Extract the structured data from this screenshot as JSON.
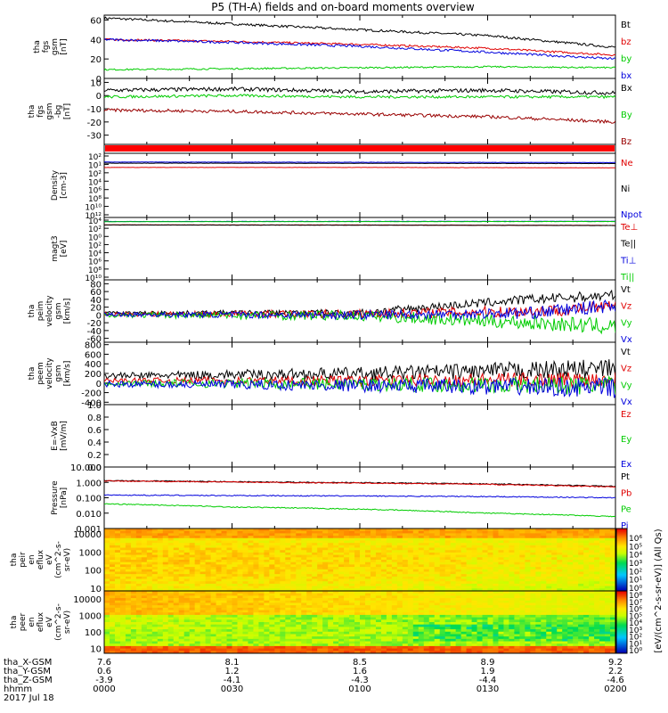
{
  "title": "P5 (TH-A) fields and on-board moments overview",
  "colors": {
    "black": "#000000",
    "red": "#e00000",
    "green": "#00cc00",
    "blue": "#0000dd",
    "darkred": "#990000"
  },
  "chart_data": [
    {
      "type": "line",
      "ylabel_lines": [
        "tha",
        "fgs",
        "gsm",
        "[nT]"
      ],
      "ylim": [
        0,
        65
      ],
      "yticks": [
        0,
        20,
        40,
        60
      ],
      "series": [
        {
          "name": "Bt",
          "color": "black",
          "x": [
            0,
            30,
            60,
            90,
            120
          ],
          "y": [
            62,
            56,
            50,
            44,
            32
          ]
        },
        {
          "name": "bz",
          "color": "red",
          "x": [
            0,
            30,
            60,
            90,
            120
          ],
          "y": [
            40,
            38,
            35,
            31,
            24
          ]
        },
        {
          "name": "by",
          "color": "green",
          "x": [
            0,
            30,
            60,
            90,
            120
          ],
          "y": [
            9,
            10,
            11,
            12,
            11
          ]
        },
        {
          "name": "bx",
          "color": "blue",
          "x": [
            0,
            30,
            60,
            90,
            120
          ],
          "y": [
            40,
            37,
            33,
            27,
            20
          ]
        }
      ]
    },
    {
      "type": "line",
      "ylabel_lines": [
        "tha",
        "fgs",
        "gsm",
        "-bg",
        "[nT]"
      ],
      "ylim": [
        -37,
        13
      ],
      "yticks": [
        10,
        0,
        -10,
        -20,
        -30
      ],
      "series": [
        {
          "name": "Bx",
          "color": "black",
          "x": [
            0,
            30,
            60,
            90,
            120
          ],
          "y": [
            4,
            5,
            3,
            4,
            2
          ]
        },
        {
          "name": "By",
          "color": "green",
          "x": [
            0,
            30,
            60,
            90,
            120
          ],
          "y": [
            -1,
            0,
            -1,
            -1,
            -1
          ]
        },
        {
          "name": "Bz",
          "color": "darkred",
          "x": [
            0,
            30,
            60,
            90,
            120
          ],
          "y": [
            -11,
            -12,
            -14,
            -16,
            -20
          ]
        }
      ]
    },
    {
      "type": "line",
      "ylabel_lines": [
        "Density",
        "[cm-3]"
      ],
      "yscale": "log",
      "ylim": [
        1e-12,
        1000.0
      ],
      "ytick_labels": [
        "10²",
        "10¹",
        "10²",
        "10⁴",
        "10⁶",
        "10⁸",
        "10¹⁰",
        "10¹²"
      ],
      "series": [
        {
          "name": "Ne",
          "color": "red",
          "x": [
            0,
            60,
            120
          ],
          "y": [
            0.5,
            0.5,
            0.4
          ]
        },
        {
          "name": "Ni",
          "color": "black",
          "x": [
            0,
            60,
            120
          ],
          "y": [
            5,
            4.5,
            4
          ]
        },
        {
          "name": "Npot",
          "color": "blue",
          "x": [
            0,
            60,
            120
          ],
          "y": [
            9,
            8,
            7
          ]
        }
      ]
    },
    {
      "type": "line",
      "ylabel_lines": [
        "magt3",
        "[eV]"
      ],
      "yscale": "log",
      "ylim": [
        1e-12,
        100000.0
      ],
      "ytick_labels": [
        "10⁴",
        "10²",
        "10⁰",
        "10²",
        "10⁴",
        "10⁶",
        "10⁸",
        "10¹⁰"
      ],
      "series": [
        {
          "name": "Te⊥",
          "color": "red",
          "x": [
            0,
            60,
            120
          ],
          "y": [
            1000,
            900,
            700
          ]
        },
        {
          "name": "Te||",
          "color": "black",
          "x": [
            0,
            60,
            120
          ],
          "y": [
            900,
            800,
            650
          ]
        },
        {
          "name": "Ti⊥",
          "color": "blue",
          "x": [
            0,
            60,
            120
          ],
          "y": [
            8000,
            8500,
            9000
          ]
        },
        {
          "name": "Ti||",
          "color": "green",
          "x": [
            0,
            60,
            120
          ],
          "y": [
            7000,
            7500,
            8000
          ]
        }
      ]
    },
    {
      "type": "line",
      "ylabel_lines": [
        "tha",
        "peim",
        "velocity",
        "gsm",
        "[km/s]"
      ],
      "ylim": [
        -70,
        90
      ],
      "yticks": [
        80,
        60,
        40,
        20,
        0,
        -20,
        -40,
        -60
      ],
      "series": [
        {
          "name": "Vt",
          "color": "black",
          "x": [
            0,
            60,
            100,
            120
          ],
          "y": [
            5,
            6,
            40,
            50
          ]
        },
        {
          "name": "Vz",
          "color": "red",
          "x": [
            0,
            60,
            100,
            120
          ],
          "y": [
            2,
            3,
            10,
            20
          ]
        },
        {
          "name": "Vy",
          "color": "green",
          "x": [
            0,
            60,
            100,
            120
          ],
          "y": [
            0,
            -2,
            -20,
            -30
          ]
        },
        {
          "name": "Vx",
          "color": "blue",
          "x": [
            0,
            60,
            100,
            120
          ],
          "y": [
            1,
            0,
            5,
            25
          ]
        }
      ]
    },
    {
      "type": "line",
      "ylabel_lines": [
        "tha",
        "peem",
        "velocity",
        "gsm",
        "[km/s]"
      ],
      "ylim": [
        -450,
        850
      ],
      "yticks": [
        800,
        600,
        400,
        200,
        0,
        -200,
        -400
      ],
      "series": [
        {
          "name": "Vt",
          "color": "black",
          "x": [
            0,
            60,
            120
          ],
          "y": [
            150,
            200,
            300
          ]
        },
        {
          "name": "Vz",
          "color": "red",
          "x": [
            0,
            60,
            120
          ],
          "y": [
            50,
            50,
            80
          ]
        },
        {
          "name": "Vy",
          "color": "green",
          "x": [
            0,
            60,
            120
          ],
          "y": [
            0,
            -20,
            -60
          ]
        },
        {
          "name": "Vx",
          "color": "blue",
          "x": [
            0,
            60,
            120
          ],
          "y": [
            -20,
            -50,
            -100
          ]
        }
      ]
    },
    {
      "type": "line",
      "ylabel_lines": [
        "E=-VxB",
        "[mV/m]"
      ],
      "ylim": [
        0,
        1
      ],
      "yticks": [
        0.0,
        0.2,
        0.4,
        0.6,
        0.8,
        1.0
      ],
      "ytick_labels": [
        "0.0",
        "0.2",
        "0.4",
        "0.6",
        "0.8",
        "1.0"
      ],
      "series": [
        {
          "name": "Ez",
          "color": "red",
          "x": [],
          "y": []
        },
        {
          "name": "Ey",
          "color": "green",
          "x": [],
          "y": []
        },
        {
          "name": "Ex",
          "color": "blue",
          "x": [],
          "y": []
        }
      ]
    },
    {
      "type": "line",
      "ylabel_lines": [
        "Pressure",
        "[nPa]"
      ],
      "yscale": "log",
      "ylim": [
        0.001,
        10
      ],
      "yticks": [
        10,
        1,
        0.1,
        0.01,
        0.001
      ],
      "ytick_labels": [
        "10.000",
        "1.000",
        "0.100",
        "0.010",
        "0.001"
      ],
      "series": [
        {
          "name": "Pt",
          "color": "black",
          "x": [
            0,
            30,
            60,
            90,
            120
          ],
          "y": [
            1.3,
            1.1,
            0.95,
            0.8,
            0.55
          ]
        },
        {
          "name": "Pb",
          "color": "red",
          "x": [
            0,
            30,
            60,
            90,
            120
          ],
          "y": [
            1.25,
            1.05,
            0.9,
            0.75,
            0.5
          ]
        },
        {
          "name": "Pe",
          "color": "green",
          "x": [
            0,
            30,
            60,
            90,
            120
          ],
          "y": [
            0.04,
            0.025,
            0.018,
            0.01,
            0.006
          ]
        },
        {
          "name": "Pi",
          "color": "blue",
          "x": [
            0,
            30,
            60,
            90,
            120
          ],
          "y": [
            0.15,
            0.14,
            0.13,
            0.12,
            0.1
          ]
        }
      ]
    },
    {
      "type": "heatmap",
      "ylabel_lines": [
        "tha",
        "peir",
        "en",
        "eflux",
        "eV",
        "(cm^2-s-",
        "sr-eV)"
      ],
      "yscale": "log",
      "ylim": [
        7,
        20000
      ],
      "yticks": [
        10000,
        1000,
        100,
        10
      ],
      "ytick_labels": [
        "10000",
        "1000",
        "100",
        "10"
      ]
    },
    {
      "type": "heatmap",
      "ylabel_lines": [
        "tha",
        "peer",
        "en",
        "eflux",
        "eV",
        "(cm^2-s-",
        "sr-eV)"
      ],
      "yscale": "log",
      "ylim": [
        5,
        30000
      ],
      "yticks": [
        10000,
        1000,
        100,
        10
      ],
      "ytick_labels": [
        "10000",
        "1000",
        "100",
        "10"
      ]
    }
  ],
  "colorbar": {
    "upper_ticks": [
      "10⁶",
      "10⁵",
      "10⁴",
      "10³",
      "10²",
      "10¹",
      "10⁰"
    ],
    "lower_ticks": [
      "10⁸",
      "10⁷",
      "10⁶",
      "10⁵",
      "10⁴",
      "10³",
      "10²",
      "10¹",
      "10⁰"
    ],
    "label": "[eV/(cm^2-s-sr-eV)] (All Qs)"
  },
  "x_axis": {
    "tick_times": [
      0,
      30,
      60,
      90,
      120
    ],
    "rows": [
      {
        "label": "tha_X-GSM",
        "values": [
          "7.6",
          "8.1",
          "8.5",
          "8.9",
          "9.2"
        ]
      },
      {
        "label": "tha_Y-GSM",
        "values": [
          "0.6",
          "1.2",
          "1.6",
          "1.9",
          "2.2"
        ]
      },
      {
        "label": "tha_Z-GSM",
        "values": [
          "-3.9",
          "-4.1",
          "-4.3",
          "-4.4",
          "-4.6"
        ]
      },
      {
        "label": "hhmm",
        "values": [
          "0000",
          "0030",
          "0100",
          "0130",
          "0200"
        ]
      }
    ],
    "date": "2017 Jul 18"
  }
}
